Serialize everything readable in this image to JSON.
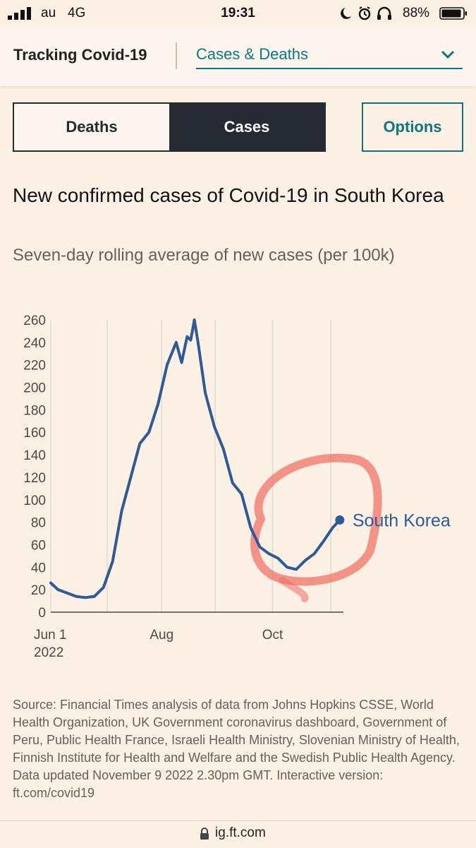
{
  "status_bar": {
    "carrier": "au",
    "network": "4G",
    "time": "19:31",
    "battery": "88%"
  },
  "header": {
    "title": "Tracking Covid-19",
    "select_value": "Cases & Deaths"
  },
  "toggle": {
    "deaths_label": "Deaths",
    "cases_label": "Cases",
    "options_label": "Options"
  },
  "chart_text": {
    "title": "New confirmed cases of Covid-19 in South Korea",
    "subtitle": "Seven-day rolling average of new cases (per 100k)"
  },
  "chart_data": {
    "type": "line",
    "title": "New confirmed cases of Covid-19 in South Korea",
    "subtitle": "Seven-day rolling average of new cases (per 100k)",
    "xlabel": "",
    "ylabel": "",
    "ylim": [
      0,
      260
    ],
    "yticks": [
      0,
      20,
      40,
      60,
      80,
      100,
      120,
      140,
      160,
      180,
      200,
      220,
      240,
      260
    ],
    "xlim": [
      "2022-06-01",
      "2022-11-09"
    ],
    "xticks": [
      {
        "label": "Jun 1",
        "sublabel": "2022",
        "date": "2022-06-01"
      },
      {
        "label": "Aug",
        "sublabel": "",
        "date": "2022-08-01"
      },
      {
        "label": "Oct",
        "sublabel": "",
        "date": "2022-10-01"
      }
    ],
    "grid": "vertical",
    "series": [
      {
        "name": "South Korea",
        "color": "#2e5a9a",
        "x": [
          "2022-06-01",
          "2022-06-05",
          "2022-06-10",
          "2022-06-15",
          "2022-06-20",
          "2022-06-25",
          "2022-06-30",
          "2022-07-05",
          "2022-07-10",
          "2022-07-15",
          "2022-07-20",
          "2022-07-25",
          "2022-07-30",
          "2022-08-04",
          "2022-08-09",
          "2022-08-12",
          "2022-08-15",
          "2022-08-17",
          "2022-08-19",
          "2022-08-21",
          "2022-08-25",
          "2022-08-30",
          "2022-09-04",
          "2022-09-09",
          "2022-09-14",
          "2022-09-19",
          "2022-09-24",
          "2022-09-29",
          "2022-10-04",
          "2022-10-09",
          "2022-10-14",
          "2022-10-19",
          "2022-10-24",
          "2022-10-29",
          "2022-11-03",
          "2022-11-07"
        ],
        "values": [
          26,
          20,
          17,
          14,
          13,
          14,
          22,
          45,
          90,
          120,
          150,
          160,
          185,
          220,
          240,
          222,
          245,
          242,
          260,
          240,
          195,
          165,
          145,
          115,
          105,
          75,
          58,
          52,
          48,
          40,
          38,
          46,
          52,
          63,
          75,
          82
        ]
      }
    ],
    "end_label": "South Korea"
  },
  "source": {
    "text": "Source: Financial Times analysis of data from Johns Hopkins CSSE, World Health Organization, UK Government coronavirus dashboard, Government of Peru, Public Health France, Israeli Health Ministry, Slovenian Ministry of Health, Finnish Institute for Health and Welfare and the Swedish Public Health Agency.\nData updated November 9 2022 2.30pm GMT. Interactive version: ft.com/covid19"
  },
  "url_bar": {
    "url": "ig.ft.com"
  }
}
